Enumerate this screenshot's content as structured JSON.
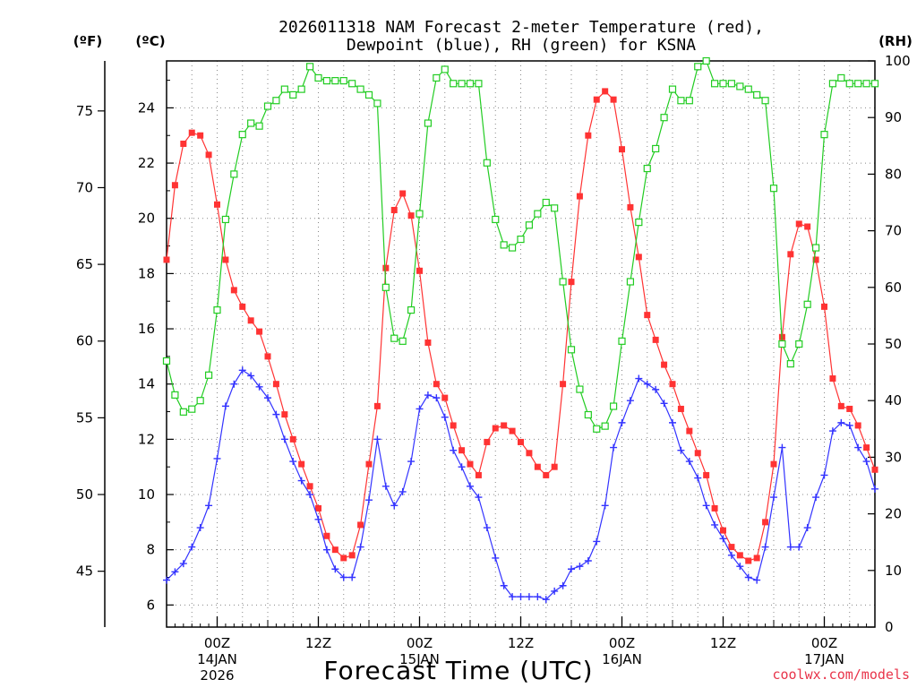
{
  "colors": {
    "temperature": "#ff3333",
    "dewpoint": "#3333ff",
    "rh": "#22cc22",
    "credit": "#e8344a",
    "grid": "#888888"
  },
  "chart_data": {
    "type": "line",
    "title_line1": "2026011318 NAM Forecast 2-meter Temperature (red),",
    "title_line2": "Dewpoint (blue), RH (green) for KSNA",
    "xlabel": "Forecast Time (UTC)",
    "credit": "coolwx.com/models",
    "units": {
      "fahrenheit": "(ºF)",
      "celsius": "(ºC)",
      "rh": "(RH)"
    },
    "x_unit": "forecast hour",
    "xlim": [
      0,
      84
    ],
    "x_ticks": [
      {
        "x": 6,
        "label": "00Z",
        "date": "14JAN",
        "year": "2026"
      },
      {
        "x": 18,
        "label": "12Z"
      },
      {
        "x": 30,
        "label": "00Z",
        "date": "15JAN"
      },
      {
        "x": 42,
        "label": "12Z"
      },
      {
        "x": 54,
        "label": "00Z",
        "date": "16JAN"
      },
      {
        "x": 66,
        "label": "12Z"
      },
      {
        "x": 78,
        "label": "00Z",
        "date": "17JAN"
      }
    ],
    "celsius_axis": {
      "ylim": [
        5.2,
        25.7
      ],
      "ticks": [
        6,
        8,
        10,
        12,
        14,
        16,
        18,
        20,
        22,
        24
      ]
    },
    "fahrenheit_axis": {
      "ylim": [
        41.36,
        78.26
      ],
      "ticks": [
        45,
        50,
        55,
        60,
        65,
        70,
        75
      ]
    },
    "rh_axis": {
      "ylim": [
        0,
        100
      ],
      "ticks": [
        0,
        10,
        20,
        30,
        40,
        50,
        60,
        70,
        80,
        90,
        100
      ]
    },
    "series": [
      {
        "name": "Temperature (ºC)",
        "color": "red",
        "marker": "filled-square",
        "axis": "celsius",
        "x": [
          0,
          1,
          2,
          3,
          4,
          5,
          6,
          7,
          8,
          9,
          10,
          11,
          12,
          13,
          14,
          15,
          16,
          17,
          18,
          19,
          20,
          21,
          22,
          23,
          24,
          25,
          26,
          27,
          28,
          29,
          30,
          31,
          32,
          33,
          34,
          35,
          36,
          37,
          38,
          39,
          40,
          41,
          42,
          43,
          44,
          45,
          46,
          47,
          48,
          49,
          50,
          51,
          52,
          53,
          54,
          55,
          56,
          57,
          58,
          59,
          60,
          61,
          62,
          63,
          64,
          65,
          66,
          67,
          68,
          69,
          70,
          71,
          72,
          73,
          74,
          75,
          76,
          77,
          78,
          79,
          80,
          81,
          82,
          83,
          84
        ],
        "values": [
          18.5,
          21.2,
          22.7,
          23.1,
          23.0,
          22.3,
          20.5,
          18.5,
          17.4,
          16.8,
          16.3,
          15.9,
          15.0,
          14.0,
          12.9,
          12.0,
          11.1,
          10.3,
          9.5,
          8.5,
          8.0,
          7.7,
          7.8,
          8.9,
          11.1,
          13.2,
          18.2,
          20.3,
          20.9,
          20.1,
          18.1,
          15.5,
          14.0,
          13.5,
          12.5,
          11.6,
          11.1,
          10.7,
          11.9,
          12.4,
          12.5,
          12.3,
          11.9,
          11.5,
          11.0,
          10.7,
          11.0,
          14.0,
          17.7,
          20.8,
          23.0,
          24.3,
          24.6,
          24.3,
          22.5,
          20.4,
          18.6,
          16.5,
          15.6,
          14.7,
          14.0,
          13.1,
          12.3,
          11.5,
          10.7,
          9.5,
          8.7,
          8.1,
          7.8,
          7.6,
          7.7,
          9.0,
          11.1,
          15.7,
          18.7,
          19.8,
          19.7,
          18.5,
          16.8,
          14.2,
          13.2,
          13.1,
          12.5,
          11.7,
          10.9
        ]
      },
      {
        "name": "Dewpoint (ºC)",
        "color": "blue",
        "marker": "plus",
        "axis": "celsius",
        "x": [
          0,
          1,
          2,
          3,
          4,
          5,
          6,
          7,
          8,
          9,
          10,
          11,
          12,
          13,
          14,
          15,
          16,
          17,
          18,
          19,
          20,
          21,
          22,
          23,
          24,
          25,
          26,
          27,
          28,
          29,
          30,
          31,
          32,
          33,
          34,
          35,
          36,
          37,
          38,
          39,
          40,
          41,
          42,
          43,
          44,
          45,
          46,
          47,
          48,
          49,
          50,
          51,
          52,
          53,
          54,
          55,
          56,
          57,
          58,
          59,
          60,
          61,
          62,
          63,
          64,
          65,
          66,
          67,
          68,
          69,
          70,
          71,
          72,
          73,
          74,
          75,
          76,
          77,
          78,
          79,
          80,
          81,
          82,
          83,
          84
        ],
        "values": [
          6.9,
          7.2,
          7.5,
          8.1,
          8.8,
          9.6,
          11.3,
          13.2,
          14.0,
          14.5,
          14.3,
          13.9,
          13.5,
          12.9,
          12.0,
          11.2,
          10.5,
          10.0,
          9.1,
          8.0,
          7.3,
          7.0,
          7.0,
          8.1,
          9.8,
          12.0,
          10.3,
          9.6,
          10.1,
          11.2,
          13.1,
          13.6,
          13.5,
          12.8,
          11.6,
          11.0,
          10.3,
          9.9,
          8.8,
          7.7,
          6.7,
          6.3,
          6.3,
          6.3,
          6.3,
          6.2,
          6.5,
          6.7,
          7.3,
          7.4,
          7.6,
          8.3,
          9.6,
          11.7,
          12.6,
          13.4,
          14.2,
          14.0,
          13.8,
          13.3,
          12.6,
          11.6,
          11.2,
          10.6,
          9.6,
          8.9,
          8.4,
          7.8,
          7.4,
          7.0,
          6.9,
          8.1,
          9.9,
          11.7,
          8.1,
          8.1,
          8.8,
          9.9,
          10.7,
          12.3,
          12.6,
          12.5,
          11.7,
          11.2,
          10.2
        ]
      },
      {
        "name": "RH (%)",
        "color": "green",
        "marker": "open-square",
        "axis": "rh",
        "x": [
          0,
          1,
          2,
          3,
          4,
          5,
          6,
          7,
          8,
          9,
          10,
          11,
          12,
          13,
          14,
          15,
          16,
          17,
          18,
          19,
          20,
          21,
          22,
          23,
          24,
          25,
          26,
          27,
          28,
          29,
          30,
          31,
          32,
          33,
          34,
          35,
          36,
          37,
          38,
          39,
          40,
          41,
          42,
          43,
          44,
          45,
          46,
          47,
          48,
          49,
          50,
          51,
          52,
          53,
          54,
          55,
          56,
          57,
          58,
          59,
          60,
          61,
          62,
          63,
          64,
          65,
          66,
          67,
          68,
          69,
          70,
          71,
          72,
          73,
          74,
          75,
          76,
          77,
          78,
          79,
          80,
          81,
          82,
          83,
          84
        ],
        "values": [
          47,
          41,
          38,
          38.5,
          40,
          44.5,
          56,
          72,
          80,
          87,
          89,
          88.5,
          92,
          93,
          95,
          94,
          95,
          99,
          97,
          96.5,
          96.5,
          96.5,
          96,
          95,
          94,
          92.5,
          60,
          51,
          50.5,
          56,
          73,
          89,
          97,
          98.5,
          96,
          96,
          96,
          96,
          82,
          72,
          67.5,
          67,
          68.5,
          71,
          73,
          75,
          74,
          61,
          49,
          42,
          37.5,
          35,
          35.5,
          39,
          50.5,
          61,
          71.5,
          81,
          84.5,
          90,
          95,
          93,
          93,
          99,
          100,
          96,
          96,
          96,
          95.5,
          95,
          94,
          93,
          77.5,
          50,
          46.5,
          50,
          57,
          67,
          87,
          96,
          97,
          96,
          96,
          96,
          96
        ]
      }
    ]
  }
}
